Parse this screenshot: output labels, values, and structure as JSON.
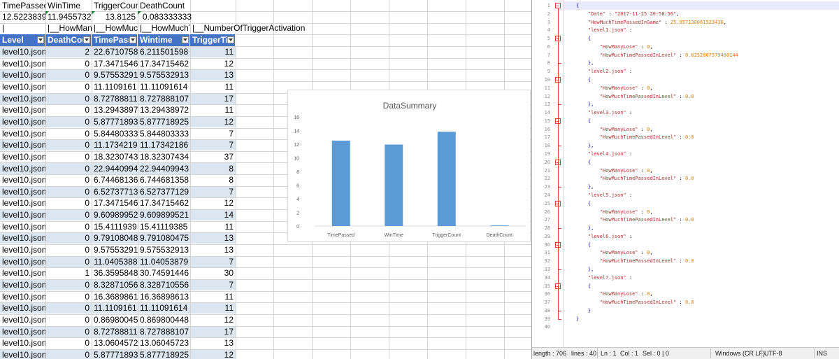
{
  "summary": {
    "headers": [
      "TimePassed",
      "WinTime",
      "TriggerCoun",
      "DeathCount"
    ],
    "values": [
      "12.5223839",
      "11.9455732",
      "13.8125",
      "0.083333333"
    ]
  },
  "sub_headers": [
    "|",
    "|__HowMany",
    "|__HowMuch",
    "|__HowMuchTi",
    "|__NumberOfTriggerActivation"
  ],
  "table": {
    "headers": [
      "Level",
      "DeathCou",
      "TimePass",
      "Wintime",
      "TriggerTi"
    ],
    "rows": [
      [
        "level10.json",
        "2",
        "22.6710758",
        "6.211501598",
        "11"
      ],
      [
        "level10.json",
        "0",
        "17.3471546",
        "17.34715462",
        "12"
      ],
      [
        "level10.json",
        "0",
        "9.57553291",
        "9.575532913",
        "13"
      ],
      [
        "level10.json",
        "0",
        "11.1109161",
        "11.11091614",
        "11"
      ],
      [
        "level10.json",
        "0",
        "8.72788811",
        "8.727888107",
        "17"
      ],
      [
        "level10.json",
        "0",
        "13.2943897",
        "13.29438972",
        "11"
      ],
      [
        "level10.json",
        "0",
        "5.87771893",
        "5.877718925",
        "12"
      ],
      [
        "level10.json",
        "0",
        "5.84480333",
        "5.844803333",
        "7"
      ],
      [
        "level10.json",
        "0",
        "11.1734219",
        "11.17342186",
        "7"
      ],
      [
        "level10.json",
        "0",
        "18.3230743",
        "18.32307434",
        "37"
      ],
      [
        "level10.json",
        "0",
        "22.9440994",
        "22.94409943",
        "8"
      ],
      [
        "level10.json",
        "0",
        "6.74468136",
        "6.744681358",
        "8"
      ],
      [
        "level10.json",
        "0",
        "6.52737713",
        "6.527377129",
        "7"
      ],
      [
        "level10.json",
        "0",
        "17.3471546",
        "17.34715462",
        "12"
      ],
      [
        "level10.json",
        "0",
        "9.60989952",
        "9.609899521",
        "14"
      ],
      [
        "level10.json",
        "0",
        "15.4111939",
        "15.41119385",
        "11"
      ],
      [
        "level10.json",
        "0",
        "9.79108048",
        "9.791080475",
        "13"
      ],
      [
        "level10.json",
        "0",
        "9.57553291",
        "9.575532913",
        "13"
      ],
      [
        "level10.json",
        "0",
        "11.0405388",
        "11.04053879",
        "7"
      ],
      [
        "level10.json",
        "1",
        "36.3595848",
        "30.74591446",
        "30"
      ],
      [
        "level10.json",
        "0",
        "8.32871056",
        "8.328710556",
        "7"
      ],
      [
        "level10.json",
        "0",
        "16.3689861",
        "16.36898613",
        "11"
      ],
      [
        "level10.json",
        "0",
        "11.1109161",
        "11.11091614",
        "11"
      ],
      [
        "level10.json",
        "0",
        "0.86980045",
        "0.869800448",
        "12"
      ],
      [
        "level10.json",
        "0",
        "8.72788811",
        "8.727888107",
        "17"
      ],
      [
        "level10.json",
        "0",
        "13.0604572",
        "13.06045723",
        "13"
      ],
      [
        "level10.json",
        "0",
        "5.87771893",
        "5.877718925",
        "12"
      ]
    ]
  },
  "chart_data": {
    "type": "bar",
    "title": "DataSummary",
    "categories": [
      "TimePassed",
      "WinTime",
      "TriggerCount",
      "DeathCount"
    ],
    "values": [
      12.5223839,
      11.9455732,
      13.8125,
      0.083333333
    ],
    "ylim": [
      0,
      16
    ],
    "yticks": [
      "0",
      "2",
      "4",
      "6",
      "8",
      "10",
      "12",
      "14",
      "16"
    ],
    "bar_color": "#5b9bd5",
    "grid": false,
    "legend": "none"
  },
  "editor": {
    "lines": [
      "{",
      "    \"Date\" : \"2017-11-25 20:58:50\",",
      "    \"HowMuchTimePassedInGame\" : 25.957138061523438,",
      "    \"level1.json\" :",
      "    {",
      "        \"HowManyLose\" : 0,",
      "        \"HowMuchTimePassedInLevel\" : 0.6252867579460144",
      "    },",
      "    \"level2.json\" :",
      "    {",
      "        \"HowManyLose\" : 0,",
      "        \"HowMuchTimePassedInLevel\" : 0.0",
      "    },",
      "    \"level3.json\" :",
      "    {",
      "        \"HowManyLose\" : 0,",
      "        \"HowMuchTimePassedInLevel\" : 0.0",
      "    },",
      "    \"level4.json\" :",
      "    {",
      "        \"HowManyLose\" : 0,",
      "        \"HowMuchTimePassedInLevel\" : 0.0",
      "    },",
      "    \"level5.json\" :",
      "    {",
      "        \"HowManyLose\" : 0,",
      "        \"HowMuchTimePassedInLevel\" : 0.0",
      "    },",
      "    \"level6.json\" :",
      "    {",
      "        \"HowManyLose\" : 0,",
      "        \"HowMuchTimePassedInLevel\" : 0.0",
      "    },",
      "    \"level7.json\" :",
      "    {",
      "        \"HowManyLose\" : 0,",
      "        \"HowMuchTimePassedInLevel\" : 0.0",
      "    }",
      "}",
      ""
    ],
    "colors": {
      "key": "#b03030",
      "number": "#e07b00",
      "brace": "#0000aa",
      "highlight": "#e8e8ff"
    }
  },
  "statusbar": {
    "length": "length : 706",
    "lines": "lines : 40",
    "ln": "Ln : 1",
    "col": "Col : 1",
    "sel": "Sel : 0 | 0",
    "eol": "Windows (CR LF)",
    "encoding": "UTF-8",
    "mode": "INS"
  }
}
